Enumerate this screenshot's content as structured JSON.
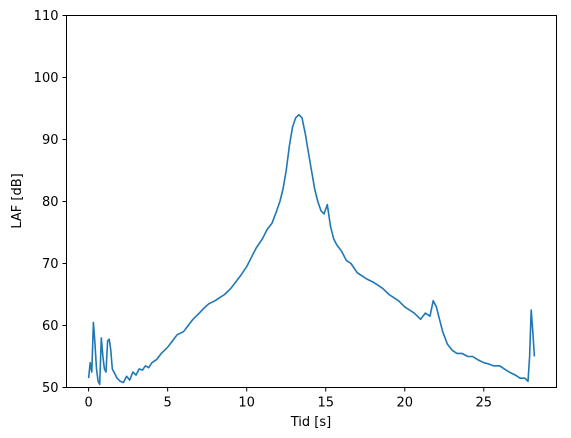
{
  "chart_data": {
    "type": "line",
    "title": "",
    "xlabel": "Tid [s]",
    "ylabel": "LAF [dB]",
    "xlim": [
      -1.4,
      29.6
    ],
    "ylim": [
      50,
      110
    ],
    "xticks": [
      0,
      5,
      10,
      15,
      20,
      25
    ],
    "yticks": [
      50,
      60,
      70,
      80,
      90,
      100,
      110
    ],
    "xtick_labels": [
      "0",
      "5",
      "10",
      "15",
      "20",
      "25"
    ],
    "ytick_labels": [
      "50",
      "60",
      "70",
      "80",
      "90",
      "100",
      "110"
    ],
    "grid": false,
    "legend": "none",
    "line_color": "#1f77b4",
    "series": [
      {
        "x": [
          0.0,
          0.1,
          0.2,
          0.3,
          0.4,
          0.5,
          0.6,
          0.7,
          0.8,
          0.9,
          1.0,
          1.1,
          1.2,
          1.3,
          1.4,
          1.5,
          1.6,
          1.7,
          1.8,
          2.0,
          2.2,
          2.4,
          2.6,
          2.8,
          3.0,
          3.2,
          3.4,
          3.6,
          3.8,
          4.0,
          4.3,
          4.6,
          5.0,
          5.3,
          5.6,
          6.0,
          6.3,
          6.6,
          7.0,
          7.3,
          7.6,
          8.0,
          8.3,
          8.6,
          9.0,
          9.3,
          9.6,
          10.0,
          10.3,
          10.6,
          11.0,
          11.3,
          11.6,
          11.9,
          12.1,
          12.3,
          12.5,
          12.7,
          12.9,
          13.1,
          13.3,
          13.5,
          13.7,
          13.9,
          14.1,
          14.3,
          14.5,
          14.7,
          14.9,
          15.1,
          15.3,
          15.5,
          15.7,
          16.0,
          16.3,
          16.6,
          17.0,
          17.3,
          17.6,
          18.0,
          18.3,
          18.6,
          19.0,
          19.3,
          19.6,
          20.0,
          20.3,
          20.6,
          21.0,
          21.3,
          21.6,
          21.8,
          22.0,
          22.2,
          22.4,
          22.7,
          23.0,
          23.3,
          23.6,
          24.0,
          24.3,
          24.6,
          25.0,
          25.3,
          25.6,
          26.0,
          26.3,
          26.6,
          27.0,
          27.3,
          27.6,
          27.8,
          27.9,
          28.0,
          28.1,
          28.2
        ],
        "y": [
          51.5,
          54,
          52.5,
          60.5,
          57,
          53,
          51,
          50.5,
          58,
          55,
          53,
          52.5,
          57.5,
          57.8,
          56,
          53,
          52.5,
          52,
          51.5,
          51,
          50.8,
          51.8,
          51.2,
          52.5,
          52,
          53,
          52.8,
          53.5,
          53.2,
          54,
          54.5,
          55.5,
          56.5,
          57.5,
          58.5,
          59,
          60,
          61,
          62,
          62.8,
          63.5,
          64,
          64.5,
          65,
          66,
          67,
          68,
          69.5,
          71,
          72.5,
          74,
          75.5,
          76.5,
          78.5,
          80,
          82,
          85,
          89,
          92,
          93.5,
          94,
          93.5,
          91,
          88,
          85,
          82,
          80,
          78.5,
          78,
          79.5,
          76,
          74,
          73,
          72,
          70.5,
          70,
          68.5,
          68,
          67.5,
          67,
          66.5,
          66,
          65,
          64.5,
          64,
          63,
          62.5,
          62,
          61,
          62,
          61.5,
          64,
          63,
          61,
          59,
          57,
          56,
          55.5,
          55.5,
          55,
          55,
          54.5,
          54,
          53.8,
          53.5,
          53.5,
          53,
          52.5,
          52,
          51.5,
          51.5,
          51,
          55,
          62.5,
          59,
          55
        ]
      }
    ]
  }
}
